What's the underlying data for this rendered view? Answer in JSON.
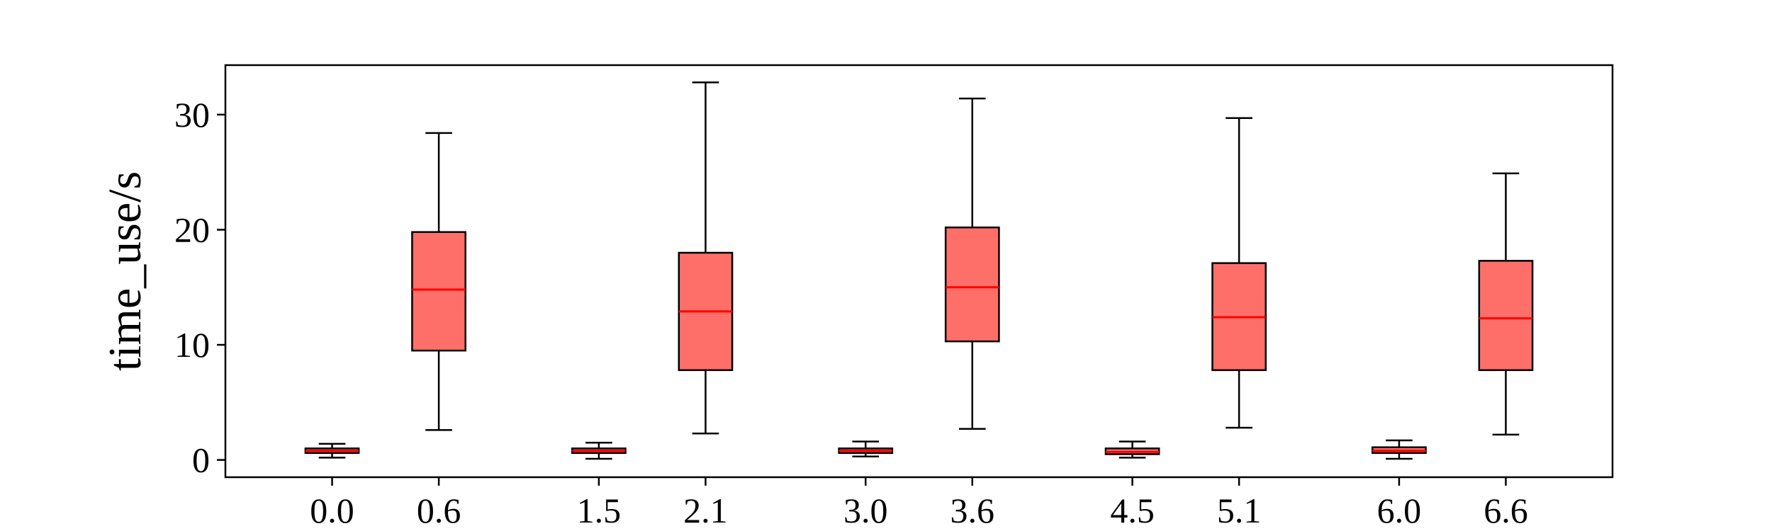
{
  "chart_data": {
    "type": "box",
    "title": "",
    "xlabel": "",
    "ylabel": "time_use/s",
    "ylim": [
      -1.5,
      34.3
    ],
    "xlim": [
      -0.6,
      7.2
    ],
    "y_ticks": [
      0,
      10,
      20,
      30
    ],
    "grid": false,
    "legend": "none",
    "box_color": "#ff6f69",
    "median_color": "#ff0000",
    "line_color": "#000000",
    "boxes": [
      {
        "x": 0.0,
        "label": "0.0",
        "whisker_low": 0.2,
        "q1": 0.6,
        "median": 0.8,
        "q3": 1.0,
        "whisker_high": 1.4
      },
      {
        "x": 0.6,
        "label": "0.6",
        "whisker_low": 2.6,
        "q1": 9.5,
        "median": 14.8,
        "q3": 19.8,
        "whisker_high": 28.4
      },
      {
        "x": 1.5,
        "label": "1.5",
        "whisker_low": 0.1,
        "q1": 0.6,
        "median": 0.8,
        "q3": 1.0,
        "whisker_high": 1.5
      },
      {
        "x": 2.1,
        "label": "2.1",
        "whisker_low": 2.3,
        "q1": 7.8,
        "median": 12.9,
        "q3": 18.0,
        "whisker_high": 32.8
      },
      {
        "x": 3.0,
        "label": "3.0",
        "whisker_low": 0.3,
        "q1": 0.6,
        "median": 0.8,
        "q3": 1.0,
        "whisker_high": 1.6
      },
      {
        "x": 3.6,
        "label": "3.6",
        "whisker_low": 2.7,
        "q1": 10.3,
        "median": 15.0,
        "q3": 20.2,
        "whisker_high": 31.4
      },
      {
        "x": 4.5,
        "label": "4.5",
        "whisker_low": 0.2,
        "q1": 0.5,
        "median": 0.7,
        "q3": 1.0,
        "whisker_high": 1.6
      },
      {
        "x": 5.1,
        "label": "5.1",
        "whisker_low": 2.8,
        "q1": 7.8,
        "median": 12.4,
        "q3": 17.1,
        "whisker_high": 29.7
      },
      {
        "x": 6.0,
        "label": "6.0",
        "whisker_low": 0.1,
        "q1": 0.6,
        "median": 0.8,
        "q3": 1.1,
        "whisker_high": 1.7
      },
      {
        "x": 6.6,
        "label": "6.6",
        "whisker_low": 2.2,
        "q1": 7.8,
        "median": 12.3,
        "q3": 17.3,
        "whisker_high": 24.9
      }
    ]
  }
}
